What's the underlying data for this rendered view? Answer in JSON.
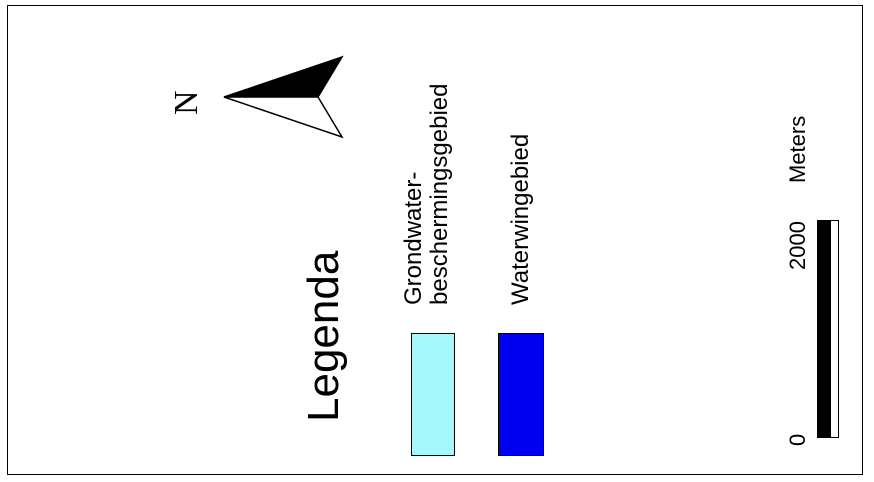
{
  "legend": {
    "title": "Legenda",
    "items": [
      {
        "label": "Grondwater-\nbeschermingsgebied",
        "color": "#a6f8fc"
      },
      {
        "label": "Waterwingebied",
        "color": "#0000f0"
      }
    ]
  },
  "scale_bar": {
    "start_label": "0",
    "end_label": "2000",
    "unit": "Meters"
  },
  "north_arrow": {
    "letter": "N",
    "icon": "north-arrow-icon"
  }
}
